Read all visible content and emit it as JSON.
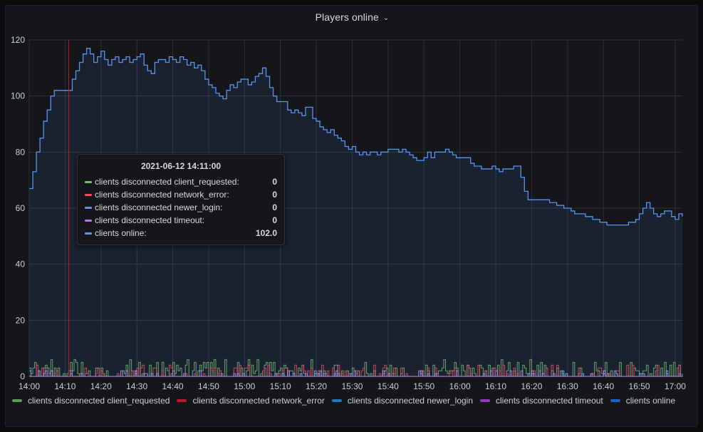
{
  "panel": {
    "title": "Players online"
  },
  "tooltip": {
    "time": "2021-06-12 14:11:00",
    "rows": [
      {
        "label": "clients disconnected client_requested:",
        "value": "0",
        "color": "#73bf69"
      },
      {
        "label": "clients disconnected network_error:",
        "value": "0",
        "color": "#f2495c"
      },
      {
        "label": "clients disconnected newer_login:",
        "value": "0",
        "color": "#5794f2"
      },
      {
        "label": "clients disconnected timeout:",
        "value": "0",
        "color": "#b877d9"
      },
      {
        "label": "clients online:",
        "value": "102.0",
        "color": "#5794f2"
      }
    ]
  },
  "chart_data": {
    "type": "line",
    "ylim": [
      0,
      120
    ],
    "yticks": [
      "0",
      "20",
      "40",
      "60",
      "80",
      "100",
      "120"
    ],
    "xticks": [
      "14:00",
      "14:10",
      "14:20",
      "14:30",
      "14:40",
      "14:50",
      "15:00",
      "15:10",
      "15:20",
      "15:30",
      "15:40",
      "15:50",
      "16:00",
      "16:10",
      "16:20",
      "16:30",
      "16:40",
      "16:50",
      "17:00"
    ],
    "xrange_minutes": [
      0,
      182
    ],
    "cursor_minute": 11,
    "series": [
      {
        "name": "clients online",
        "color": "#5794f2",
        "legend_color": "#1f60c4",
        "points": [
          [
            0,
            67
          ],
          [
            1,
            73
          ],
          [
            2,
            80
          ],
          [
            3,
            85
          ],
          [
            4,
            91
          ],
          [
            5,
            95
          ],
          [
            6,
            100
          ],
          [
            7,
            102
          ],
          [
            8,
            102
          ],
          [
            9,
            102
          ],
          [
            10,
            102
          ],
          [
            11,
            102
          ],
          [
            12,
            106
          ],
          [
            13,
            109
          ],
          [
            14,
            112
          ],
          [
            15,
            115
          ],
          [
            16,
            117
          ],
          [
            17,
            115
          ],
          [
            18,
            112
          ],
          [
            19,
            114
          ],
          [
            20,
            116
          ],
          [
            21,
            113
          ],
          [
            22,
            111
          ],
          [
            23,
            113
          ],
          [
            24,
            114
          ],
          [
            25,
            112
          ],
          [
            26,
            113
          ],
          [
            27,
            114
          ],
          [
            28,
            112
          ],
          [
            29,
            113
          ],
          [
            30,
            114
          ],
          [
            31,
            115
          ],
          [
            32,
            111
          ],
          [
            33,
            109
          ],
          [
            34,
            108
          ],
          [
            35,
            112
          ],
          [
            36,
            113
          ],
          [
            37,
            113
          ],
          [
            38,
            112
          ],
          [
            39,
            114
          ],
          [
            40,
            113
          ],
          [
            41,
            112
          ],
          [
            42,
            114
          ],
          [
            43,
            113
          ],
          [
            44,
            111
          ],
          [
            45,
            112
          ],
          [
            46,
            110
          ],
          [
            47,
            111
          ],
          [
            48,
            109
          ],
          [
            49,
            106
          ],
          [
            50,
            104
          ],
          [
            51,
            103
          ],
          [
            52,
            101
          ],
          [
            53,
            100
          ],
          [
            54,
            99
          ],
          [
            55,
            102
          ],
          [
            56,
            104
          ],
          [
            57,
            103
          ],
          [
            58,
            105
          ],
          [
            59,
            106
          ],
          [
            60,
            106
          ],
          [
            61,
            104
          ],
          [
            62,
            105
          ],
          [
            63,
            107
          ],
          [
            64,
            108
          ],
          [
            65,
            110
          ],
          [
            66,
            107
          ],
          [
            67,
            103
          ],
          [
            68,
            100
          ],
          [
            69,
            98
          ],
          [
            70,
            98
          ],
          [
            71,
            98
          ],
          [
            72,
            95
          ],
          [
            73,
            94
          ],
          [
            74,
            95
          ],
          [
            75,
            94
          ],
          [
            76,
            93
          ],
          [
            77,
            96
          ],
          [
            78,
            96
          ],
          [
            79,
            92
          ],
          [
            80,
            91
          ],
          [
            81,
            89
          ],
          [
            82,
            88
          ],
          [
            83,
            87
          ],
          [
            84,
            88
          ],
          [
            85,
            86
          ],
          [
            86,
            85
          ],
          [
            87,
            84
          ],
          [
            88,
            82
          ],
          [
            89,
            81
          ],
          [
            90,
            82
          ],
          [
            91,
            80
          ],
          [
            92,
            79
          ],
          [
            93,
            80
          ],
          [
            94,
            79
          ],
          [
            95,
            80
          ],
          [
            96,
            80
          ],
          [
            97,
            79
          ],
          [
            98,
            80
          ],
          [
            99,
            80
          ],
          [
            100,
            81
          ],
          [
            101,
            81
          ],
          [
            102,
            81
          ],
          [
            103,
            80
          ],
          [
            104,
            81
          ],
          [
            105,
            80
          ],
          [
            106,
            79
          ],
          [
            107,
            78
          ],
          [
            108,
            77
          ],
          [
            109,
            77
          ],
          [
            110,
            78
          ],
          [
            111,
            80
          ],
          [
            112,
            78
          ],
          [
            113,
            80
          ],
          [
            114,
            80
          ],
          [
            115,
            80
          ],
          [
            116,
            81
          ],
          [
            117,
            80
          ],
          [
            118,
            79
          ],
          [
            119,
            78
          ],
          [
            120,
            78
          ],
          [
            121,
            78
          ],
          [
            122,
            78
          ],
          [
            123,
            76
          ],
          [
            124,
            75
          ],
          [
            125,
            75
          ],
          [
            126,
            74
          ],
          [
            127,
            74
          ],
          [
            128,
            74
          ],
          [
            129,
            75
          ],
          [
            130,
            74
          ],
          [
            131,
            73
          ],
          [
            132,
            74
          ],
          [
            133,
            74
          ],
          [
            134,
            74
          ],
          [
            135,
            75
          ],
          [
            136,
            75
          ],
          [
            137,
            71
          ],
          [
            138,
            66
          ],
          [
            139,
            63
          ],
          [
            140,
            63
          ],
          [
            141,
            63
          ],
          [
            142,
            63
          ],
          [
            143,
            63
          ],
          [
            144,
            63
          ],
          [
            145,
            62
          ],
          [
            146,
            62
          ],
          [
            147,
            61
          ],
          [
            148,
            61
          ],
          [
            149,
            60
          ],
          [
            150,
            60
          ],
          [
            151,
            59
          ],
          [
            152,
            58
          ],
          [
            153,
            58
          ],
          [
            154,
            58
          ],
          [
            155,
            57
          ],
          [
            156,
            57
          ],
          [
            157,
            56
          ],
          [
            158,
            56
          ],
          [
            159,
            55
          ],
          [
            160,
            55
          ],
          [
            161,
            54
          ],
          [
            162,
            54
          ],
          [
            163,
            54
          ],
          [
            164,
            54
          ],
          [
            165,
            54
          ],
          [
            166,
            54
          ],
          [
            167,
            55
          ],
          [
            168,
            55
          ],
          [
            169,
            56
          ],
          [
            170,
            58
          ],
          [
            171,
            60
          ],
          [
            172,
            62
          ],
          [
            173,
            60
          ],
          [
            174,
            58
          ],
          [
            175,
            57
          ],
          [
            176,
            58
          ],
          [
            177,
            59
          ],
          [
            178,
            59
          ],
          [
            179,
            57
          ],
          [
            180,
            56
          ],
          [
            181,
            58
          ],
          [
            182,
            57
          ]
        ]
      },
      {
        "name": "clients disconnected client_requested",
        "color": "#73bf69",
        "legend_color": "#629e51",
        "seed": 7,
        "max": 6,
        "density": 0.55
      },
      {
        "name": "clients disconnected network_error",
        "color": "#f2495c",
        "legend_color": "#c4162a",
        "seed": 13,
        "max": 4,
        "density": 0.35
      },
      {
        "name": "clients disconnected newer_login",
        "color": "#8ab8ff",
        "legend_color": "#1f78c1",
        "seed": 23,
        "max": 2,
        "density": 0.15
      },
      {
        "name": "clients disconnected timeout",
        "color": "#ca95e5",
        "legend_color": "#8f3bb8",
        "seed": 31,
        "max": 2,
        "density": 0.12
      }
    ]
  },
  "legend": {
    "items": [
      {
        "label": "clients disconnected client_requested",
        "color": "#629e51"
      },
      {
        "label": "clients disconnected network_error",
        "color": "#c4162a"
      },
      {
        "label": "clients disconnected newer_login",
        "color": "#1f78c1"
      },
      {
        "label": "clients disconnected timeout",
        "color": "#8f3bb8"
      },
      {
        "label": "clients online",
        "color": "#1f60c4"
      }
    ]
  }
}
